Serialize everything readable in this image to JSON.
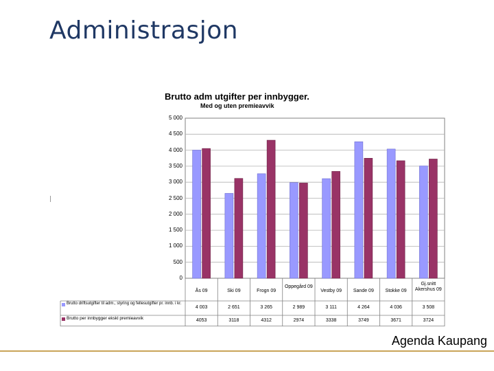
{
  "slide": {
    "title": "Administrasjon",
    "footer": "Agenda Kaupang"
  },
  "colors": {
    "series1": "#9999ff",
    "series2": "#993366",
    "accent_rule": "#c9a458",
    "title": "#1f3864"
  },
  "chart_data": {
    "type": "bar",
    "title": "Brutto adm utgifter per innbygger.",
    "subtitle": "Med og uten premieavvik",
    "xlabel": "",
    "ylabel": "",
    "ylim": [
      0,
      5000
    ],
    "ytick_labels": [
      "5 000",
      "4 500",
      "4 000",
      "3 500",
      "3 000",
      "2 500",
      "2 000",
      "1 500",
      "1 000",
      "500",
      "0"
    ],
    "categories": [
      "Ås 09",
      "Ski 09",
      "Frogn 09",
      "Oppegård 09",
      "Vestby 09",
      "Sande 09",
      "Stokke 09",
      "Gj.snitt Akershus 09"
    ],
    "series": [
      {
        "name": "Brutto driftsutgifter til adm., styring og fellesutgifter pr. innb. i kr.",
        "values": [
          4003,
          2651,
          3265,
          2989,
          3111,
          4264,
          4036,
          3508
        ],
        "labels": [
          "4 003",
          "2 651",
          "3 265",
          "2 989",
          "3 111",
          "4 264",
          "4 036",
          "3 508"
        ]
      },
      {
        "name": "Brutto per innbygger ekskl premieavvik",
        "values": [
          4053,
          3118,
          4312,
          2974,
          3338,
          3749,
          3671,
          3724
        ],
        "labels": [
          "4053",
          "3118",
          "4312",
          "2974",
          "3338",
          "3749",
          "3671",
          "3724"
        ]
      }
    ],
    "grid": true,
    "legend": "table-below"
  }
}
